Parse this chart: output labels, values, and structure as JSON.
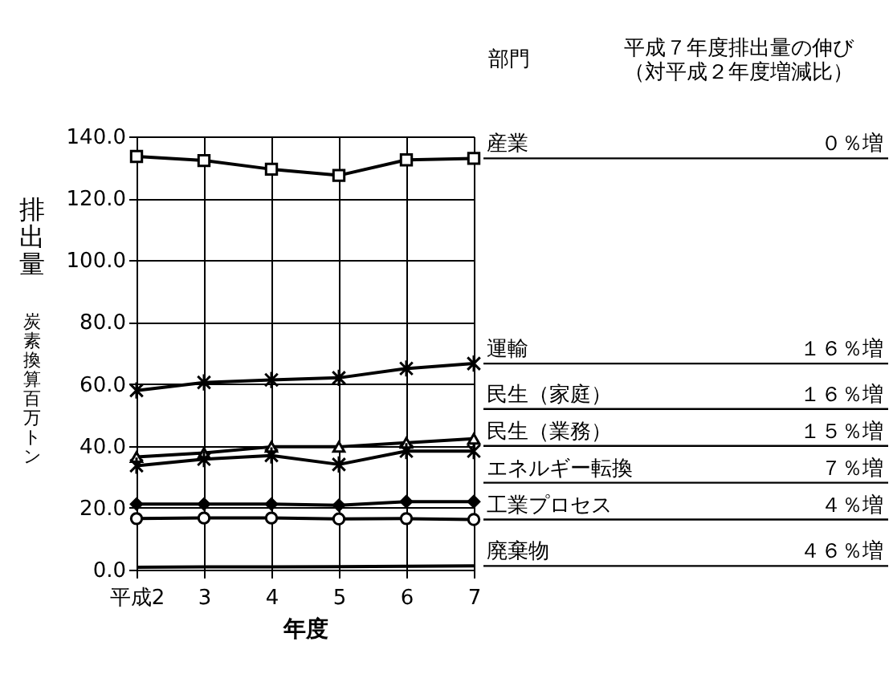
{
  "chart_data": {
    "type": "line",
    "categories": [
      "平成2",
      "3",
      "4",
      "5",
      "6",
      "7"
    ],
    "xlabel": "年度",
    "ylabel": "排出量",
    "legend_title": "部門",
    "annotations": [
      "炭素換算百万トン",
      "平成７年度排出量の伸び",
      "（対平成２年度増減比）",
      "０％増",
      "１６％増",
      "１６％増",
      "１５％増",
      "７％増",
      "４％増",
      "４６％増"
    ],
    "series": [
      {
        "name": "産業",
        "color": "#000000",
        "marker": "square",
        "values": [
          133.5,
          132.2,
          129.4,
          127.4,
          132.4,
          132.9
        ]
      },
      {
        "name": "運輸",
        "color": "#000000",
        "marker": "cross",
        "values": [
          57.9,
          60.5,
          61.3,
          62.0,
          65.0,
          66.6
        ]
      },
      {
        "name": "民生（家庭）",
        "color": "#000000",
        "marker": "triangle",
        "values": [
          36.4,
          37.7,
          39.7,
          39.7,
          41.0,
          42.3
        ]
      },
      {
        "name": "民生（業務）",
        "color": "#000000",
        "marker": "cross",
        "values": [
          33.6,
          35.7,
          36.9,
          34.0,
          38.3,
          38.3
        ]
      },
      {
        "name": "エネルギー転換",
        "color": "#000000",
        "marker": "diamond",
        "values": [
          21.2,
          21.2,
          21.2,
          20.8,
          22.0,
          22.0
        ]
      },
      {
        "name": "工業プロセス",
        "color": "#000000",
        "marker": "circle",
        "values": [
          16.5,
          16.7,
          16.7,
          16.4,
          16.5,
          16.2
        ]
      },
      {
        "name": "廃棄物",
        "color": "#000000",
        "marker": "none",
        "values": [
          0.8,
          0.9,
          0.9,
          1.0,
          1.1,
          1.2
        ]
      }
    ],
    "ylim": [
      0,
      140
    ],
    "yticks": [
      {
        "value": 0,
        "label": "0.0"
      },
      {
        "value": 20,
        "label": "20.0"
      },
      {
        "value": 40,
        "label": "40.0"
      },
      {
        "value": 60,
        "label": "60.0"
      },
      {
        "value": 80,
        "label": "80.0"
      },
      {
        "value": 100,
        "label": "100.0"
      },
      {
        "value": 120,
        "label": "120.0"
      },
      {
        "value": 140,
        "label": "140.0"
      }
    ],
    "grid": true,
    "line_style": "solid"
  }
}
